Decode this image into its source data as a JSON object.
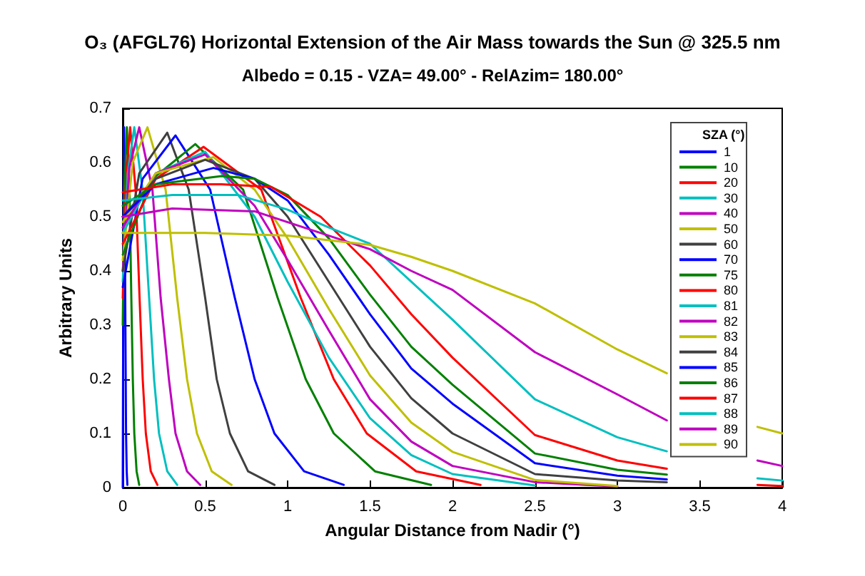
{
  "chart_data": {
    "type": "line",
    "title": "O₃ (AFGL76) Horizontal Extension of the Air Mass towards the Sun @ 325.5 nm",
    "subtitle": "Albedo = 0.15 - VZA= 49.00° - RelAzim= 180.00°",
    "xlabel": "Angular Distance from Nadir (°)",
    "ylabel": "Arbitrary Units",
    "legend_title": "SZA (°)",
    "xlim": [
      0,
      4
    ],
    "ylim": [
      0,
      0.7
    ],
    "xticks": [
      0,
      0.5,
      1,
      1.5,
      2,
      2.5,
      3,
      3.5,
      4
    ],
    "yticks": [
      0,
      0.1,
      0.2,
      0.3,
      0.4,
      0.5,
      0.6,
      0.7
    ],
    "grid": false,
    "legend": "right",
    "marker": "none",
    "line_style": "solid",
    "series": [
      {
        "name": "1",
        "color": "#0000ff",
        "x": [
          0,
          0.004,
          0.008,
          0.012,
          0.015,
          0.018,
          0.02,
          0.024,
          0.028
        ],
        "values": [
          0,
          0.45,
          0.665,
          0.55,
          0.35,
          0.2,
          0.1,
          0.03,
          0.005
        ]
      },
      {
        "name": "10",
        "color": "#008000",
        "x": [
          0,
          0.01,
          0.025,
          0.041,
          0.052,
          0.061,
          0.07,
          0.084,
          0.1
        ],
        "values": [
          0.3,
          0.55,
          0.665,
          0.55,
          0.35,
          0.2,
          0.1,
          0.03,
          0.005
        ]
      },
      {
        "name": "20",
        "color": "#ff0000",
        "x": [
          0,
          0.02,
          0.045,
          0.078,
          0.102,
          0.121,
          0.14,
          0.17,
          0.21
        ],
        "values": [
          0.35,
          0.57,
          0.665,
          0.55,
          0.35,
          0.2,
          0.1,
          0.03,
          0.005
        ]
      },
      {
        "name": "30",
        "color": "#00bfbf",
        "x": [
          0,
          0.03,
          0.07,
          0.12,
          0.16,
          0.19,
          0.22,
          0.27,
          0.33
        ],
        "values": [
          0.38,
          0.58,
          0.665,
          0.55,
          0.35,
          0.2,
          0.1,
          0.03,
          0.005
        ]
      },
      {
        "name": "40",
        "color": "#bf00bf",
        "x": [
          0,
          0.04,
          0.1,
          0.18,
          0.23,
          0.28,
          0.32,
          0.39,
          0.47
        ],
        "values": [
          0.4,
          0.59,
          0.665,
          0.55,
          0.35,
          0.2,
          0.1,
          0.03,
          0.005
        ]
      },
      {
        "name": "50",
        "color": "#bfbf00",
        "x": [
          0,
          0.06,
          0.15,
          0.26,
          0.33,
          0.39,
          0.45,
          0.54,
          0.66
        ],
        "values": [
          0.42,
          0.6,
          0.665,
          0.55,
          0.35,
          0.2,
          0.1,
          0.03,
          0.005
        ]
      },
      {
        "name": "60",
        "color": "#404040",
        "x": [
          0,
          0.1,
          0.27,
          0.4,
          0.5,
          0.57,
          0.65,
          0.76,
          0.92
        ],
        "values": [
          0.4,
          0.58,
          0.655,
          0.55,
          0.35,
          0.2,
          0.1,
          0.03,
          0.005
        ]
      },
      {
        "name": "70",
        "color": "#0000ff",
        "x": [
          0,
          0.12,
          0.32,
          0.53,
          0.68,
          0.8,
          0.92,
          1.1,
          1.34
        ],
        "values": [
          0.37,
          0.57,
          0.65,
          0.55,
          0.35,
          0.2,
          0.1,
          0.03,
          0.005
        ]
      },
      {
        "name": "75",
        "color": "#008000",
        "x": [
          0,
          0.18,
          0.44,
          0.73,
          0.94,
          1.11,
          1.28,
          1.53,
          1.87
        ],
        "values": [
          0.43,
          0.57,
          0.634,
          0.55,
          0.35,
          0.2,
          0.1,
          0.03,
          0.005
        ]
      },
      {
        "name": "80",
        "color": "#ff0000",
        "x": [
          0,
          0.2,
          0.49,
          0.84,
          1.08,
          1.28,
          1.48,
          1.78,
          2.17
        ],
        "values": [
          0.45,
          0.57,
          0.629,
          0.55,
          0.35,
          0.2,
          0.1,
          0.03,
          0.005
        ]
      },
      {
        "name": "81",
        "color": "#00bfbf",
        "x": [
          0,
          0.2,
          0.5,
          0.8,
          1,
          1.25,
          1.5,
          1.75,
          2,
          2.5
        ],
        "values": [
          0.47,
          0.58,
          0.62,
          0.5,
          0.38,
          0.24,
          0.128,
          0.06,
          0.025,
          0.004
        ]
      },
      {
        "name": "82",
        "color": "#bf00bf",
        "x": [
          0,
          0.2,
          0.5,
          0.8,
          1,
          1.25,
          1.5,
          1.75,
          2,
          2.5,
          3
        ],
        "values": [
          0.48,
          0.58,
          0.615,
          0.52,
          0.42,
          0.29,
          0.163,
          0.085,
          0.04,
          0.01,
          0.002
        ]
      },
      {
        "name": "83",
        "color": "#bfbf00",
        "x": [
          0,
          0.2,
          0.55,
          0.8,
          1,
          1.25,
          1.5,
          1.75,
          2,
          2.5,
          3
        ],
        "values": [
          0.49,
          0.58,
          0.61,
          0.55,
          0.46,
          0.33,
          0.207,
          0.12,
          0.066,
          0.014,
          0.003
        ]
      },
      {
        "name": "84",
        "color": "#404040",
        "x": [
          0,
          0.2,
          0.5,
          0.8,
          1,
          1.25,
          1.5,
          1.75,
          2,
          2.5,
          3,
          3.3
        ],
        "values": [
          0.5,
          0.57,
          0.605,
          0.57,
          0.5,
          0.38,
          0.26,
          0.165,
          0.1,
          0.025,
          0.013,
          0.01
        ]
      },
      {
        "name": "85",
        "color": "#0000ff",
        "x": [
          0,
          0.2,
          0.55,
          0.8,
          1,
          1.25,
          1.5,
          1.75,
          2,
          2.5,
          3,
          3.3
        ],
        "values": [
          0.5,
          0.56,
          0.59,
          0.57,
          0.53,
          0.43,
          0.32,
          0.22,
          0.155,
          0.045,
          0.022,
          0.015
        ]
      },
      {
        "name": "86",
        "color": "#008000",
        "x": [
          0,
          0.2,
          0.6,
          0.8,
          1,
          1.25,
          1.5,
          1.75,
          2,
          2.5,
          3,
          3.3
        ],
        "values": [
          0.52,
          0.56,
          0.575,
          0.57,
          0.54,
          0.46,
          0.356,
          0.26,
          0.19,
          0.063,
          0.033,
          0.024
        ]
      },
      {
        "name": "87",
        "color": "#ff0000",
        "x": [
          0,
          0.3,
          0.6,
          0.9,
          1.2,
          1.5,
          1.75,
          2,
          2.5,
          3,
          3.3,
          3.6,
          3.85,
          4
        ],
        "values": [
          0.545,
          0.56,
          0.56,
          0.555,
          0.5,
          0.41,
          0.32,
          0.24,
          0.097,
          0.05,
          0.035,
          null,
          0.005,
          0.003
        ]
      },
      {
        "name": "88",
        "color": "#00bfbf",
        "x": [
          0,
          0.3,
          0.7,
          1,
          1.25,
          1.5,
          1.75,
          2,
          2.5,
          3,
          3.3,
          3.6,
          3.85,
          4
        ],
        "values": [
          0.53,
          0.54,
          0.54,
          0.513,
          0.48,
          0.45,
          0.38,
          0.31,
          0.163,
          0.093,
          0.067,
          null,
          0.017,
          0.013
        ]
      },
      {
        "name": "89",
        "color": "#bf00bf",
        "x": [
          0,
          0.3,
          0.8,
          1,
          1.25,
          1.5,
          1.75,
          2,
          2.5,
          3,
          3.3,
          3.6,
          3.85,
          4
        ],
        "values": [
          0.5,
          0.515,
          0.51,
          0.49,
          0.465,
          0.44,
          0.4,
          0.365,
          0.25,
          0.172,
          0.124,
          null,
          0.05,
          0.04
        ]
      },
      {
        "name": "90",
        "color": "#bfbf00",
        "x": [
          0,
          0.5,
          1,
          1.5,
          1.75,
          2,
          2.5,
          3,
          3.3,
          3.6,
          3.85,
          4
        ],
        "values": [
          0.47,
          0.47,
          0.465,
          0.448,
          0.426,
          0.4,
          0.34,
          0.255,
          0.211,
          null,
          0.112,
          0.1
        ]
      }
    ]
  }
}
